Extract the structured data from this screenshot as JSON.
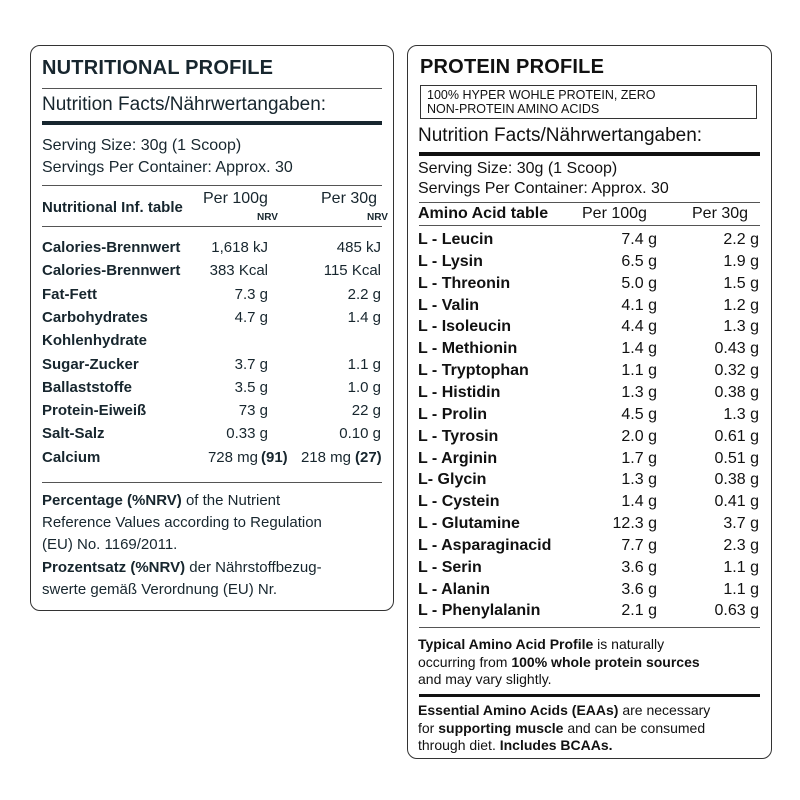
{
  "nutritional": {
    "title": "NUTRITIONAL PROFILE",
    "facts_heading": "Nutrition Facts/Nährwertangaben:",
    "serving_size": "Serving Size: 30g (1 Scoop)",
    "servings_per_container": "Servings Per Container: Approx. 30",
    "table_header": {
      "label": "Nutritional Inf. table",
      "per100": "Per 100g",
      "per30": "Per 30g",
      "nrv100": "NRV",
      "nrv30": "NRV"
    },
    "rows": [
      {
        "label": "Calories-Brennwert",
        "per100": "1,618 kJ",
        "per30": "485 kJ"
      },
      {
        "label": "Calories-Brennwert",
        "per100": "383 Kcal",
        "per30": "115 Kcal"
      },
      {
        "label": "Fat-Fett",
        "per100": "7.3 g",
        "per30": "2.2 g"
      },
      {
        "label": "Carbohydrates",
        "per100": "4.7 g",
        "per30": "1.4 g"
      },
      {
        "label": "Kohlenhydrate",
        "per100": "",
        "per30": ""
      },
      {
        "label": "Sugar-Zucker",
        "per100": "3.7 g",
        "per30": "1.1 g"
      },
      {
        "label": "Ballaststoffe",
        "per100": "3.5 g",
        "per30": "1.0 g"
      },
      {
        "label": "Protein-Eiweiß",
        "per100": "73 g",
        "per30": "22 g"
      },
      {
        "label": "Salt-Salz",
        "per100": "0.33 g",
        "per30": "0.10 g"
      },
      {
        "label": "Calcium",
        "per100": "728 mg",
        "nrv100": "(91)",
        "per30": "218 mg",
        "nrv30": "(27)"
      }
    ],
    "note_en": {
      "bold": "Percentage (%NRV)",
      "line1_rest": " of the Nutrient",
      "line2": "Reference Values according to Regulation",
      "line3": "(EU) No. 1169/2011."
    },
    "note_de": {
      "bold": "Prozentsatz (%NRV)",
      "line1_rest": " der Nährstoffbezug-",
      "line2": "swerte gemäß Verordnung (EU) Nr."
    }
  },
  "protein": {
    "title": "PROTEIN PROFILE",
    "subtitle_line1": "100% HYPER WOHLE PROTEIN, ZERO",
    "subtitle_line2": "NON-PROTEIN AMINO ACIDS",
    "facts_heading": "Nutrition Facts/Nährwertangaben:",
    "serving_size": "Serving Size: 30g (1 Scoop)",
    "servings_per_container": "Servings Per Container: Approx. 30",
    "table_header": {
      "label": "Amino Acid table",
      "per100": "Per 100g",
      "per30": "Per 30g"
    },
    "rows": [
      {
        "label": "L - Leucin",
        "per100": "7.4 g",
        "per30": "2.2 g"
      },
      {
        "label": "L - Lysin",
        "per100": "6.5 g",
        "per30": "1.9 g"
      },
      {
        "label": "L - Threonin",
        "per100": "5.0 g",
        "per30": "1.5 g"
      },
      {
        "label": "L - Valin",
        "per100": "4.1 g",
        "per30": "1.2 g"
      },
      {
        "label": "L - Isoleucin",
        "per100": "4.4 g",
        "per30": "1.3 g"
      },
      {
        "label": "L - Methionin",
        "per100": "1.4 g",
        "per30": "0.43 g"
      },
      {
        "label": "L - Tryptophan",
        "per100": "1.1 g",
        "per30": "0.32 g"
      },
      {
        "label": "L - Histidin",
        "per100": "1.3 g",
        "per30": "0.38 g"
      },
      {
        "label": "L - Prolin",
        "per100": "4.5 g",
        "per30": "1.3 g"
      },
      {
        "label": "L - Tyrosin",
        "per100": "2.0 g",
        "per30": "0.61 g"
      },
      {
        "label": "L - Arginin",
        "per100": "1.7 g",
        "per30": "0.51 g"
      },
      {
        "label": "L- Glycin",
        "per100": "1.3 g",
        "per30": "0.38 g"
      },
      {
        "label": "L - Cystein",
        "per100": "1.4 g",
        "per30": "0.41 g"
      },
      {
        "label": "L - Glutamine",
        "per100": "12.3 g",
        "per30": "3.7 g"
      },
      {
        "label": "L - Asparaginacid",
        "per100": "7.7 g",
        "per30": "2.3 g"
      },
      {
        "label": "L - Serin",
        "per100": "3.6 g",
        "per30": "1.1 g"
      },
      {
        "label": "L - Alanin",
        "per100": "3.6 g",
        "per30": "1.1 g"
      },
      {
        "label": "L - Phenylalanin",
        "per100": "2.1 g",
        "per30": "0.63 g"
      }
    ],
    "note1": {
      "b1": "Typical Amino Acid Profile",
      "t1": " is naturally",
      "t2": "occurring from ",
      "b2": "100% whole protein sources",
      "t3": "and may vary slightly."
    },
    "note2": {
      "b1": "Essential Amino Acids (EAAs)",
      "t1": " are necessary",
      "t2": "for ",
      "b2": "supporting muscle",
      "t3": " and can be consumed",
      "t4": "through diet. ",
      "b3": "Includes BCAAs."
    }
  }
}
